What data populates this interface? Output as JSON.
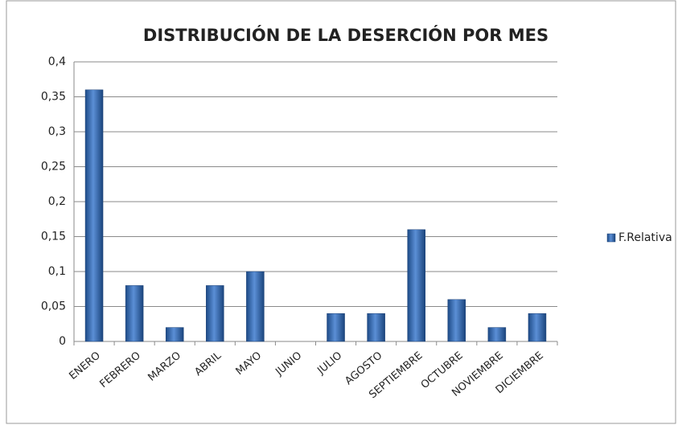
{
  "chart_data": {
    "type": "bar",
    "title": "DISTRIBUCIÓN DE LA DESERCIÓN POR MES",
    "categories": [
      "ENERO",
      "FEBRERO",
      "MARZO",
      "ABRIL",
      "MAYO",
      "JUNIO",
      "JULIO",
      "AGOSTO",
      "SEPTIEMBRE",
      "OCTUBRE",
      "NOVIEMBRE",
      "DICIEMBRE"
    ],
    "series": [
      {
        "name": "F.Relativa",
        "color": "#3a6db0",
        "values": [
          0.36,
          0.08,
          0.02,
          0.08,
          0.1,
          0,
          0.04,
          0.04,
          0.16,
          0.06,
          0.02,
          0.04
        ]
      }
    ],
    "ylim": [
      0,
      0.4
    ],
    "yticks": [
      0,
      {
        "value": 0.05,
        "label": "0,05"
      },
      {
        "value": 0.1,
        "label": "0,1"
      },
      {
        "value": 0.15,
        "label": "0,15"
      },
      {
        "value": 0.2,
        "label": "0,2"
      },
      {
        "value": 0.25,
        "label": "0,25"
      },
      {
        "value": 0.3,
        "label": "0,3"
      },
      {
        "value": 0.35,
        "label": "0,35"
      },
      {
        "value": 0.4,
        "label": "0,4"
      }
    ],
    "grid": true,
    "legend": "right"
  }
}
